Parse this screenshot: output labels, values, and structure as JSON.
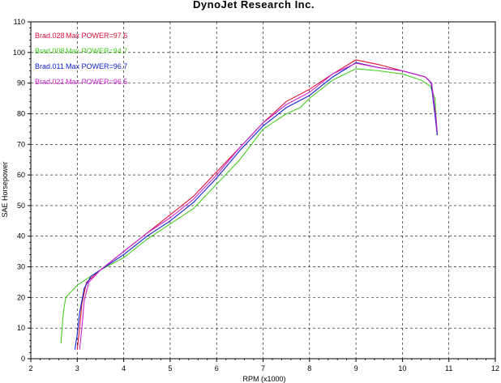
{
  "chart_data": {
    "type": "line",
    "title": "DynoJet Research Inc.",
    "xlabel": "RPM (x1000)",
    "ylabel": "SAE Horsepower",
    "xlim": [
      2,
      12
    ],
    "ylim": [
      0,
      110
    ],
    "xticks": [
      "2",
      "3",
      "4",
      "5",
      "6",
      "7",
      "8",
      "9",
      "10",
      "11",
      "12"
    ],
    "yticks": [
      "0",
      "10",
      "20",
      "30",
      "40",
      "50",
      "60",
      "70",
      "80",
      "90",
      "100",
      "110"
    ],
    "grid": true,
    "legend_position": "top-left",
    "series": [
      {
        "name": "Brad.028",
        "legend_value": "Max POWER=97.6",
        "color": "#e0103a",
        "points": [
          [
            3.0,
            3
          ],
          [
            3.05,
            10
          ],
          [
            3.1,
            18
          ],
          [
            3.2,
            25
          ],
          [
            3.5,
            29
          ],
          [
            4.0,
            35
          ],
          [
            4.5,
            41
          ],
          [
            5.0,
            47
          ],
          [
            5.5,
            53
          ],
          [
            6.0,
            61
          ],
          [
            6.5,
            69
          ],
          [
            7.0,
            77
          ],
          [
            7.5,
            84
          ],
          [
            8.0,
            88
          ],
          [
            8.5,
            93
          ],
          [
            9.0,
            97.6
          ],
          [
            9.5,
            96
          ],
          [
            10.0,
            94
          ],
          [
            10.5,
            92
          ],
          [
            10.62,
            90
          ],
          [
            10.72,
            78
          ],
          [
            10.75,
            73
          ]
        ]
      },
      {
        "name": "Brad.008",
        "legend_value": "Max POWER=94.7",
        "color": "#44cc22",
        "points": [
          [
            2.65,
            5
          ],
          [
            2.7,
            15
          ],
          [
            2.75,
            20
          ],
          [
            3.0,
            24
          ],
          [
            3.3,
            27
          ],
          [
            3.5,
            29
          ],
          [
            4.0,
            33
          ],
          [
            4.5,
            39
          ],
          [
            5.0,
            44
          ],
          [
            5.5,
            49
          ],
          [
            6.0,
            57
          ],
          [
            6.5,
            65
          ],
          [
            7.0,
            75
          ],
          [
            7.5,
            80
          ],
          [
            7.8,
            82
          ],
          [
            8.0,
            85
          ],
          [
            8.5,
            91
          ],
          [
            9.0,
            94.7
          ],
          [
            9.5,
            94
          ],
          [
            10.0,
            93
          ],
          [
            10.4,
            91
          ],
          [
            10.6,
            89
          ],
          [
            10.7,
            85
          ],
          [
            10.75,
            73
          ]
        ]
      },
      {
        "name": "Brad.011",
        "legend_value": "Max POWER=96.7",
        "color": "#1020cc",
        "points": [
          [
            2.95,
            3
          ],
          [
            3.0,
            8
          ],
          [
            3.05,
            15
          ],
          [
            3.15,
            23
          ],
          [
            3.3,
            27
          ],
          [
            3.5,
            29
          ],
          [
            4.0,
            34
          ],
          [
            4.5,
            40
          ],
          [
            5.0,
            45
          ],
          [
            5.5,
            51
          ],
          [
            6.0,
            59
          ],
          [
            6.5,
            68
          ],
          [
            7.0,
            76
          ],
          [
            7.5,
            82
          ],
          [
            8.0,
            86
          ],
          [
            8.5,
            92
          ],
          [
            9.0,
            96.7
          ],
          [
            9.5,
            95
          ],
          [
            10.0,
            94
          ],
          [
            10.5,
            92
          ],
          [
            10.62,
            90
          ],
          [
            10.72,
            77
          ],
          [
            10.75,
            73
          ]
        ]
      },
      {
        "name": "Brad.021",
        "legend_value": "Max POWER=96.5",
        "color": "#cc22cc",
        "points": [
          [
            3.05,
            3
          ],
          [
            3.1,
            10
          ],
          [
            3.15,
            19
          ],
          [
            3.25,
            25
          ],
          [
            3.5,
            29
          ],
          [
            4.0,
            35
          ],
          [
            4.5,
            41
          ],
          [
            5.0,
            46
          ],
          [
            5.5,
            52
          ],
          [
            6.0,
            60
          ],
          [
            6.5,
            69
          ],
          [
            7.0,
            77
          ],
          [
            7.5,
            83
          ],
          [
            8.0,
            87
          ],
          [
            8.5,
            93
          ],
          [
            9.0,
            96.5
          ],
          [
            9.5,
            95
          ],
          [
            10.0,
            94
          ],
          [
            10.5,
            92
          ],
          [
            10.63,
            90
          ],
          [
            10.72,
            79
          ],
          [
            10.75,
            74
          ]
        ]
      }
    ]
  }
}
